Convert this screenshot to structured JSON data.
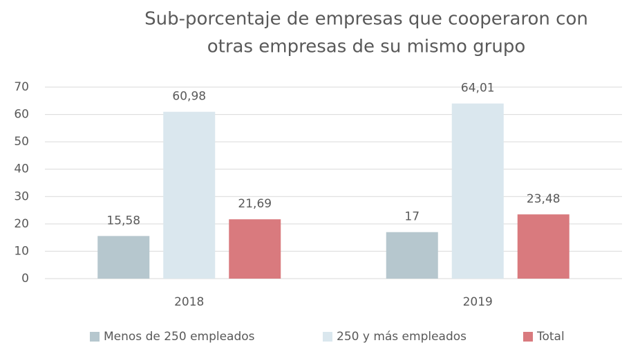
{
  "chart_data": {
    "type": "bar",
    "title": [
      "Sub-porcentaje de empresas que cooperaron con",
      "otras empresas de su mismo grupo"
    ],
    "categories": [
      "2018",
      "2019"
    ],
    "series": [
      {
        "name": "Menos de 250 empleados",
        "color": "#b6c7ce",
        "values": [
          15.58,
          17
        ],
        "value_labels": [
          "15,58",
          "17"
        ]
      },
      {
        "name": "250 y más empleados",
        "color": "#dae7ee",
        "values": [
          60.98,
          64.01
        ],
        "value_labels": [
          "60,98",
          "64,01"
        ]
      },
      {
        "name": "Total",
        "color": "#d97a7e",
        "values": [
          21.69,
          23.48
        ],
        "value_labels": [
          "21,69",
          "23,48"
        ]
      }
    ],
    "ylim": [
      0,
      70
    ],
    "yticks": [
      0,
      10,
      20,
      30,
      40,
      50,
      60,
      70
    ],
    "grid": true,
    "legend": "bottom"
  }
}
